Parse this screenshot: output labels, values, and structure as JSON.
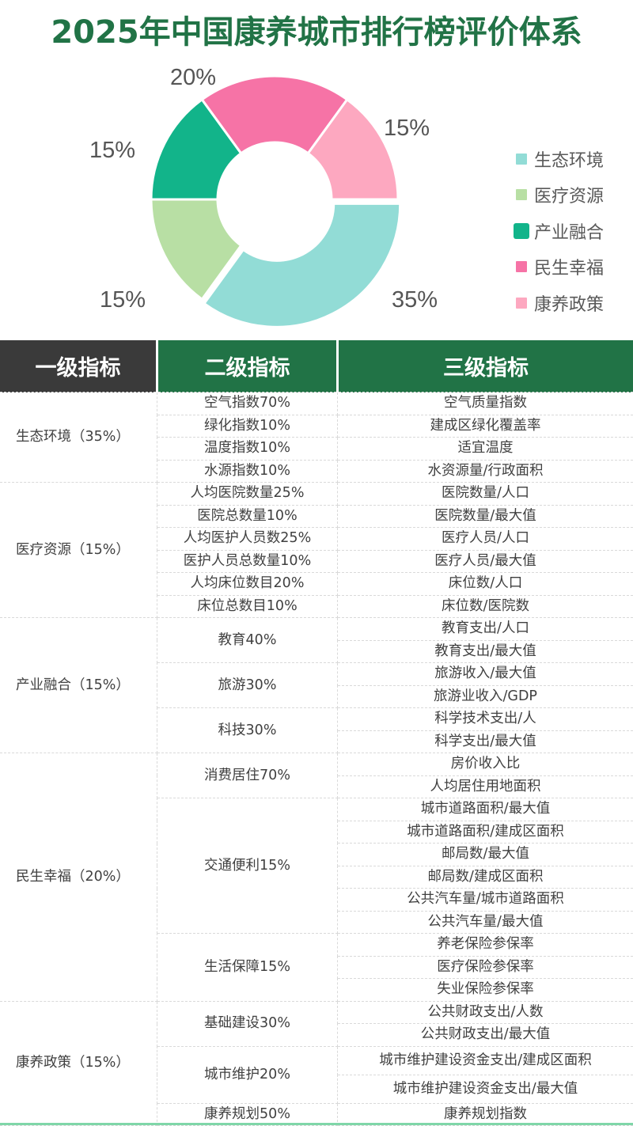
{
  "title": "2025年中国康养城市排行榜评价体系",
  "chart_data": {
    "type": "pie",
    "variant": "donut",
    "title": "2025年中国康养城市排行榜评价体系",
    "categories": [
      "生态环境",
      "医疗资源",
      "产业融合",
      "民生幸福",
      "康养政策"
    ],
    "values": [
      35,
      15,
      15,
      20,
      15
    ],
    "labels": [
      "35%",
      "15%",
      "15%",
      "20%",
      "15%"
    ],
    "colors": [
      "#92dcd6",
      "#b8dfa4",
      "#12b48a",
      "#f673a6",
      "#fda8c0"
    ],
    "legend_position": "right"
  },
  "legend": {
    "items": [
      {
        "label": "生态环境",
        "color": "#92dcd6"
      },
      {
        "label": "医疗资源",
        "color": "#b8dfa4"
      },
      {
        "label": "产业融合",
        "color": "#12b48a"
      },
      {
        "label": "民生幸福",
        "color": "#f673a6"
      },
      {
        "label": "康养政策",
        "color": "#fda8c0"
      }
    ]
  },
  "table": {
    "headers": [
      "一级指标",
      "二级指标",
      "三级指标"
    ],
    "groups": [
      {
        "level1": "生态环境（35%）",
        "level2": [
          {
            "label": "空气指数70%",
            "level3": [
              "空气质量指数"
            ]
          },
          {
            "label": "绿化指数10%",
            "level3": [
              "建成区绿化覆盖率"
            ]
          },
          {
            "label": "温度指数10%",
            "level3": [
              "适宜温度"
            ]
          },
          {
            "label": "水源指数10%",
            "level3": [
              "水资源量/行政面积"
            ]
          }
        ]
      },
      {
        "level1": "医疗资源（15%）",
        "level2": [
          {
            "label": "人均医院数量25%",
            "level3": [
              "医院数量/人口"
            ]
          },
          {
            "label": "医院总数量10%",
            "level3": [
              "医院数量/最大值"
            ]
          },
          {
            "label": "人均医护人员数25%",
            "level3": [
              "医疗人员/人口"
            ]
          },
          {
            "label": "医护人员总数量10%",
            "level3": [
              "医疗人员/最大值"
            ]
          },
          {
            "label": "人均床位数目20%",
            "level3": [
              "床位数/人口"
            ]
          },
          {
            "label": "床位总数目10%",
            "level3": [
              "床位数/医院数"
            ]
          }
        ]
      },
      {
        "level1": "产业融合（15%）",
        "level2": [
          {
            "label": "教育40%",
            "level3": [
              "教育支出/人口",
              "教育支出/最大值"
            ]
          },
          {
            "label": "旅游30%",
            "level3": [
              "旅游收入/最大值",
              "旅游业收入/GDP"
            ]
          },
          {
            "label": "科技30%",
            "level3": [
              "科学技术支出/人",
              "科学支出/最大值"
            ]
          }
        ]
      },
      {
        "level1": "民生幸福（20%）",
        "level2": [
          {
            "label": "消费居住70%",
            "level3": [
              "房价收入比",
              "人均居住用地面积"
            ]
          },
          {
            "label": "交通便利15%",
            "level3": [
              "城市道路面积/最大值",
              "城市道路面积/建成区面积",
              "邮局数/最大值",
              "邮局数/建成区面积",
              "公共汽车量/城市道路面积",
              "公共汽车量/最大值"
            ]
          },
          {
            "label": "生活保障15%",
            "level3": [
              "养老保险参保率",
              "医疗保险参保率",
              "失业保险参保率"
            ]
          }
        ]
      },
      {
        "level1": "康养政策（15%）",
        "level2": [
          {
            "label": "基础建设30%",
            "level3": [
              "公共财政支出/人数",
              "公共财政支出/最大值"
            ]
          },
          {
            "label": "城市维护20%",
            "level3": [
              "城市维护建设资金支出/建成区面积",
              "城市维护建设资金支出/最大值"
            ]
          },
          {
            "label": "康养规划50%",
            "level3": [
              "康养规划指数"
            ]
          }
        ]
      }
    ]
  }
}
